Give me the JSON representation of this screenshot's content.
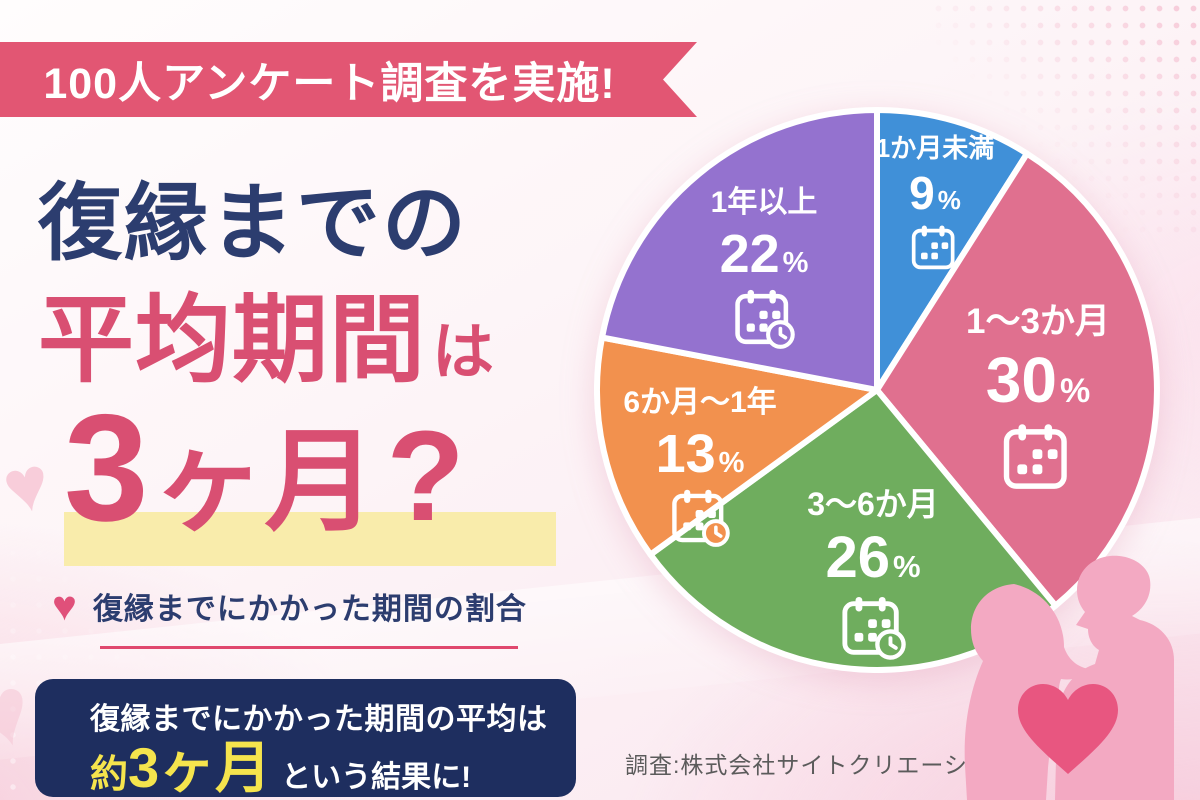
{
  "banner": {
    "text": "100人アンケート調査を実施!"
  },
  "title": {
    "line1": "復縁までの",
    "line2_main": "平均期間",
    "line2_particle": "は",
    "line3_num": "3",
    "line3_unit": "ヶ月",
    "line3_question": "?"
  },
  "section_label": {
    "text": "復縁までにかかった期間の割合"
  },
  "result_box": {
    "line1": "復縁までにかかった期間の平均は",
    "highlight_prefix": "約",
    "highlight_value": "3ヶ月",
    "line2_rest": "という結果に!"
  },
  "credit": {
    "text": "調査:株式会社サイトクリエーション"
  },
  "icons": {
    "heart_bullet": "♥",
    "bg_heart": "♥"
  },
  "colors": {
    "banner_pink": "#e25673",
    "title_navy": "#2c3d6f",
    "title_pink": "#d94f72",
    "highlight_yellow": "#f9ecab",
    "box_navy": "#1e2e5f",
    "box_yellow_text": "#f5e44d",
    "underline_pink": "#e0486e",
    "couple_pink": "#f3a9c2",
    "couple_heart": "#e85680"
  },
  "chart_data": {
    "type": "pie",
    "title": "復縁までにかかった期間の割合",
    "percent_suffix": "%",
    "start_angle_deg": 0,
    "direction": "clockwise",
    "legend_position": "on-slices",
    "slices": [
      {
        "label": "1か月未満",
        "value": 9,
        "color": "#4090d8",
        "icon": "calendar-icon"
      },
      {
        "label": "1〜3か月",
        "value": 30,
        "color": "#e0708f",
        "icon": "calendar-icon"
      },
      {
        "label": "3〜6か月",
        "value": 26,
        "color": "#6fad5e",
        "icon": "calendar-clock-icon"
      },
      {
        "label": "6か月〜1年",
        "value": 13,
        "color": "#f2914e",
        "icon": "calendar-clock-icon"
      },
      {
        "label": "1年以上",
        "value": 22,
        "color": "#9472cf",
        "icon": "calendar-clock-icon"
      }
    ]
  }
}
